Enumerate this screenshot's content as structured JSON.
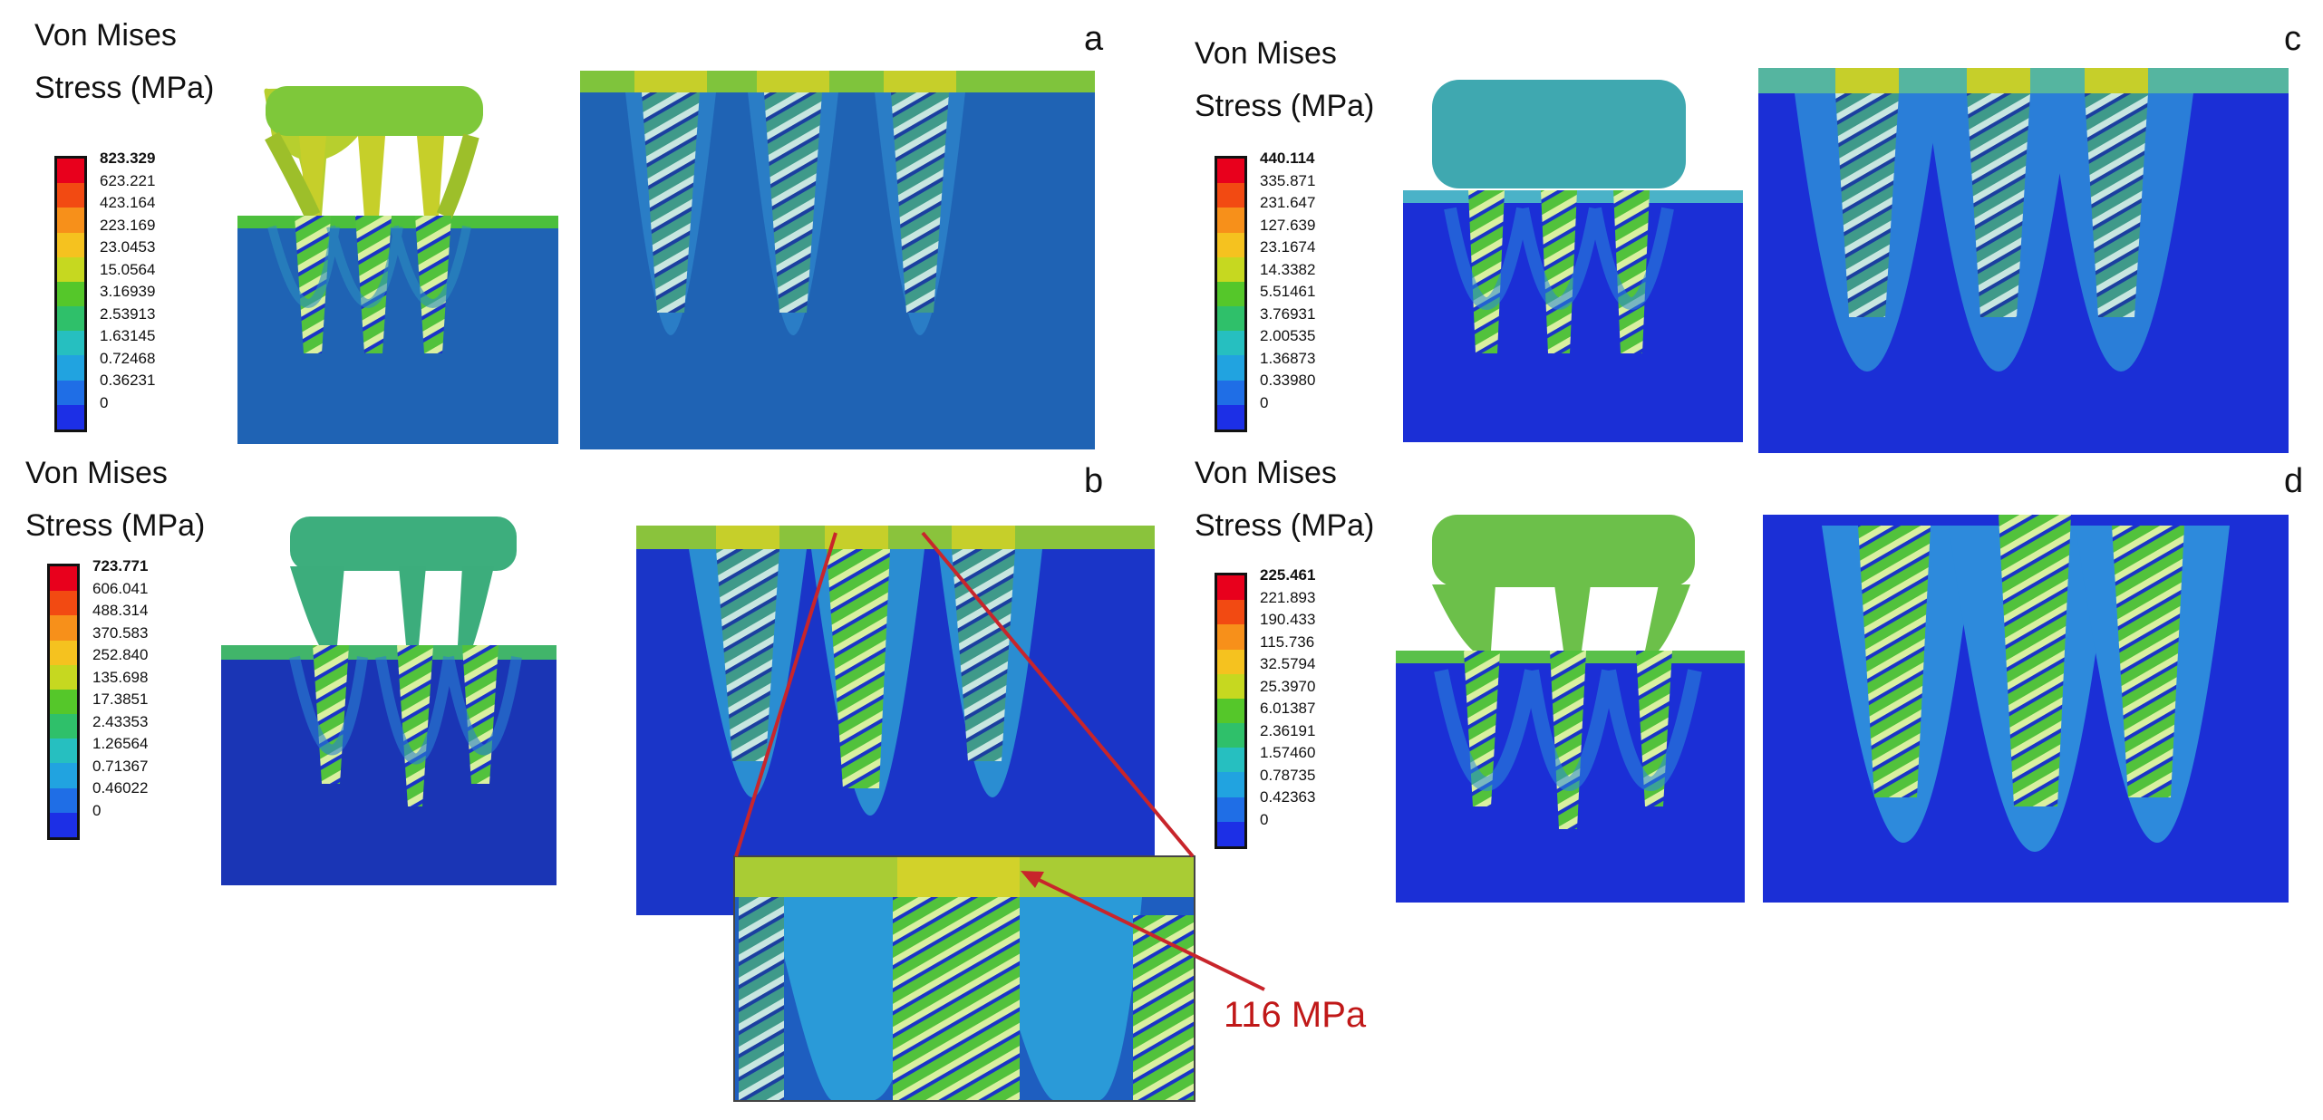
{
  "panels": {
    "a": {
      "letter": "a",
      "title_line1": "Von Mises",
      "title_line2": "Stress (MPa)",
      "legend": [
        "823.329",
        "623.221",
        "423.164",
        "223.169",
        "23.0453",
        "15.0564",
        "3.16939",
        "2.53913",
        "1.63145",
        "0.72468",
        "0.36231",
        "0"
      ]
    },
    "b": {
      "letter": "b",
      "title_line1": "Von Mises",
      "title_line2": "Stress (MPa)",
      "legend": [
        "723.771",
        "606.041",
        "488.314",
        "370.583",
        "252.840",
        "135.698",
        "17.3851",
        "2.43353",
        "1.26564",
        "0.71367",
        "0.46022",
        "0"
      ]
    },
    "c": {
      "letter": "c",
      "title_line1": "Von Mises",
      "title_line2": "Stress (MPa)",
      "legend": [
        "440.114",
        "335.871",
        "231.647",
        "127.639",
        "23.1674",
        "14.3382",
        "5.51461",
        "3.76931",
        "2.00535",
        "1.36873",
        "0.33980",
        "0"
      ]
    },
    "d": {
      "letter": "d",
      "title_line1": "Von Mises",
      "title_line2": "Stress (MPa)",
      "legend": [
        "225.461",
        "221.893",
        "190.433",
        "115.736",
        "32.5794",
        "25.3970",
        "6.01387",
        "2.36191",
        "1.57460",
        "0.78735",
        "0.42363",
        "0"
      ]
    }
  },
  "callout": "116 MPa",
  "colors": {
    "bone_blue": "#1a5fa8",
    "bone_deep": "#0c2ed0",
    "implant_green": "#4cbf3c",
    "implant_yellow": "#c6cf2a",
    "abutment_teal": "#38b48a",
    "arrow_red": "#c8252b"
  },
  "colorbar": [
    "#e8001c",
    "#f24a12",
    "#f7901a",
    "#f5c21f",
    "#c6d820",
    "#55c72a",
    "#2fc06a",
    "#26bfc0",
    "#21a3e0",
    "#1f6ee6",
    "#1c2fe6"
  ]
}
